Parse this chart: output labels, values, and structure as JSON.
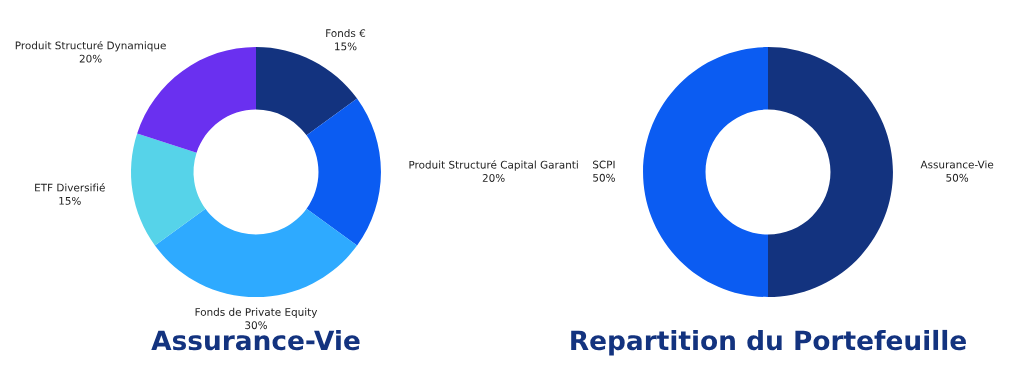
{
  "chart_data": [
    {
      "type": "donut",
      "title": "Assurance-Vie",
      "categories": [
        "Fonds €",
        "Produit Structuré Capital Garanti",
        "Fonds de Private Equity",
        "ETF Diversifié",
        "Produit Structuré Dynamique"
      ],
      "values": [
        15,
        20,
        30,
        15,
        20
      ],
      "value_labels": [
        "15%",
        "20%",
        "30%",
        "15%",
        "20%"
      ],
      "colors": [
        "#13337f",
        "#0b5cf2",
        "#2eaaff",
        "#56d3e9",
        "#6a30f0"
      ]
    },
    {
      "type": "donut",
      "title": "Repartition du Portefeuille",
      "categories": [
        "Assurance-Vie",
        "SCPI"
      ],
      "values": [
        50,
        50
      ],
      "value_labels": [
        "50%",
        "50%"
      ],
      "colors": [
        "#13337f",
        "#0b5cf2"
      ]
    }
  ]
}
